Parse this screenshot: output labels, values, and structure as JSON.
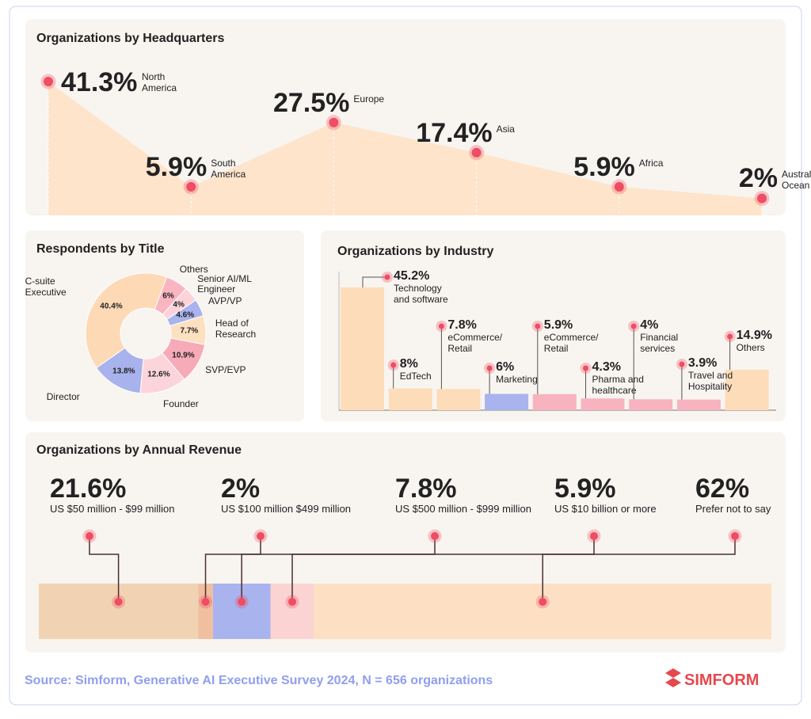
{
  "chart_data": [
    {
      "type": "area",
      "title": "Organizations by Headquarters",
      "categories": [
        "North America",
        "South America",
        "Europe",
        "Asia",
        "Africa",
        "Australia/ Ocean"
      ],
      "values": [
        41.3,
        5.9,
        27.5,
        17.4,
        5.9,
        2
      ],
      "value_labels": [
        "41.3%",
        "5.9%",
        "27.5%",
        "17.4%",
        "5.9%",
        "2%"
      ],
      "color": "#fde4cb",
      "marker_color": "#ee4d63"
    },
    {
      "type": "donut",
      "title": "Respondents by Title",
      "categories": [
        "C-suite Executive",
        "Others",
        "Senior AI/ML Engineer",
        "AVP/VP",
        "Head of Research",
        "SVP/EVP",
        "Founder",
        "Director"
      ],
      "values": [
        40.4,
        6,
        4,
        4.6,
        7.7,
        10.9,
        12.6,
        13.8
      ],
      "value_labels": [
        "40.4%",
        "6%",
        "4%",
        "4.6%",
        "7.7%",
        "10.9%",
        "12.6%",
        "13.8%"
      ],
      "colors": [
        "#fdd9b5",
        "#f9b6c1",
        "#fbd3d9",
        "#a9b4ee",
        "#fde0c0",
        "#f7aab8",
        "#fcd5da",
        "#a8b2ec"
      ]
    },
    {
      "type": "bar",
      "title": "Organizations by Industry",
      "categories": [
        "Technology and software",
        "EdTech",
        "eCommerce/ Retail",
        "Marketing",
        "eCommerce/ Retail",
        "Pharma and healthcare",
        "Financial services",
        "Travel and Hospitality",
        "Others"
      ],
      "values": [
        45.2,
        8,
        7.8,
        6,
        5.9,
        4.3,
        4,
        3.9,
        14.9
      ],
      "value_labels": [
        "45.2%",
        "8%",
        "7.8%",
        "6%",
        "5.9%",
        "4.3%",
        "4%",
        "3.9%",
        "14.9%"
      ],
      "colors": [
        "#fddcb9",
        "#fddcb9",
        "#fddcb9",
        "#a9b4ee",
        "#f7b3bf",
        "#f7b3bf",
        "#f7b3bf",
        "#f7b3bf",
        "#fddcb9"
      ],
      "marker_color": "#ee4d63"
    },
    {
      "type": "stacked-bar",
      "title": "Organizations by Annual Revenue",
      "categories": [
        "US $50 million - $99 million",
        "US $100 million $499 million",
        "US $500 million - $999 million",
        "US $10 billion or more",
        "Prefer not to say"
      ],
      "values": [
        21.6,
        2,
        7.8,
        5.9,
        62
      ],
      "value_labels": [
        "21.6%",
        "2%",
        "7.8%",
        "5.9%",
        "62%"
      ],
      "colors": [
        "#f1d3b3",
        "#f0bf9f",
        "#a9b4ee",
        "#fbd3d3",
        "#fde0c3"
      ],
      "marker_color": "#ee4d63"
    }
  ],
  "source": "Source: Simform, Generative AI Executive Survey 2024, N = 656 organizations",
  "brand": "SIMFORM"
}
